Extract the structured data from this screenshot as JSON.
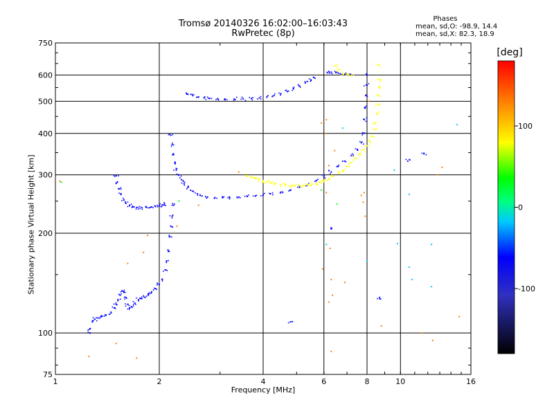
{
  "chart_data": {
    "type": "scatter",
    "title": "Tromsø 20140326 16:02:00–16:03:43",
    "subtitle": "RwPretec (8p)",
    "xlabel": "Frequency [MHz]",
    "ylabel": "Stationary phase Virtual Height [km]",
    "x_scale": "log",
    "y_scale": "log",
    "xlim": [
      1,
      16
    ],
    "ylim": [
      75,
      750
    ],
    "x_ticks": [
      1,
      2,
      4,
      6,
      8,
      10,
      16
    ],
    "x_tick_labels": [
      "1",
      "2",
      "4",
      "6",
      "8",
      "10",
      "16"
    ],
    "y_ticks": [
      75,
      100,
      200,
      300,
      400,
      500,
      600,
      750
    ],
    "y_tick_labels": [
      "75",
      "100",
      "200",
      "300",
      "400",
      "500",
      "600",
      "750"
    ],
    "grid": true,
    "phases": {
      "title": "Phases",
      "o_label": "mean, sd,O:",
      "o_values": "-98.9, 14.4",
      "x_label": "mean, sd,X:",
      "x_values": "82.3, 18.9"
    },
    "colorbar": {
      "unit": "[deg]",
      "range": [
        -180,
        180
      ],
      "tick_values": [
        100,
        0,
        -100
      ],
      "tick_labels": [
        "100",
        "0",
        "-100"
      ],
      "colors": [
        "#ff0000",
        "#ff8000",
        "#ffff00",
        "#00ff00",
        "#00ffff",
        "#0000ff",
        "#000000"
      ]
    },
    "series": [
      {
        "mode": "O",
        "color": "#0000ff",
        "points": [
          [
            1.26,
            100
          ],
          [
            1.26,
            103
          ],
          [
            1.28,
            108
          ],
          [
            1.3,
            110
          ],
          [
            1.33,
            111
          ],
          [
            1.36,
            112
          ],
          [
            1.4,
            113
          ],
          [
            1.45,
            115
          ],
          [
            1.48,
            119
          ],
          [
            1.5,
            122
          ],
          [
            1.52,
            126
          ],
          [
            1.54,
            130
          ],
          [
            1.56,
            134
          ],
          [
            1.58,
            133
          ],
          [
            1.6,
            128
          ],
          [
            1.62,
            122
          ],
          [
            1.64,
            119
          ],
          [
            1.66,
            120
          ],
          [
            1.7,
            123
          ],
          [
            1.74,
            126
          ],
          [
            1.78,
            127
          ],
          [
            1.82,
            128
          ],
          [
            1.86,
            130
          ],
          [
            1.9,
            133
          ],
          [
            1.95,
            136
          ],
          [
            2.0,
            140
          ],
          [
            2.04,
            145
          ],
          [
            2.08,
            155
          ],
          [
            2.1,
            165
          ],
          [
            2.12,
            178
          ],
          [
            2.14,
            195
          ],
          [
            2.16,
            210
          ],
          [
            2.18,
            225
          ],
          [
            2.2,
            243
          ],
          [
            1.5,
            298
          ],
          [
            1.51,
            285
          ],
          [
            1.53,
            272
          ],
          [
            1.55,
            262
          ],
          [
            1.58,
            252
          ],
          [
            1.6,
            246
          ],
          [
            1.64,
            242
          ],
          [
            1.68,
            240
          ],
          [
            1.72,
            239
          ],
          [
            1.78,
            239
          ],
          [
            1.84,
            239
          ],
          [
            1.9,
            240
          ],
          [
            1.95,
            241
          ],
          [
            2.0,
            242
          ],
          [
            2.04,
            243
          ],
          [
            2.07,
            245
          ],
          [
            2.16,
            395
          ],
          [
            2.18,
            370
          ],
          [
            2.2,
            345
          ],
          [
            2.22,
            325
          ],
          [
            2.24,
            310
          ],
          [
            2.28,
            300
          ],
          [
            2.32,
            290
          ],
          [
            2.36,
            282
          ],
          [
            2.42,
            275
          ],
          [
            2.5,
            268
          ],
          [
            2.58,
            263
          ],
          [
            2.66,
            259
          ],
          [
            2.76,
            257
          ],
          [
            2.9,
            256
          ],
          [
            3.05,
            256
          ],
          [
            3.2,
            256
          ],
          [
            3.4,
            257
          ],
          [
            3.6,
            258
          ],
          [
            3.8,
            259
          ],
          [
            4.0,
            261
          ],
          [
            4.2,
            263
          ],
          [
            4.5,
            266
          ],
          [
            4.8,
            270
          ],
          [
            5.1,
            275
          ],
          [
            5.4,
            281
          ],
          [
            5.7,
            288
          ],
          [
            6.0,
            296
          ],
          [
            6.3,
            306
          ],
          [
            6.6,
            318
          ],
          [
            6.9,
            330
          ],
          [
            7.2,
            343
          ],
          [
            7.5,
            358
          ],
          [
            7.7,
            375
          ],
          [
            7.8,
            400
          ],
          [
            7.86,
            440
          ],
          [
            7.9,
            480
          ],
          [
            7.93,
            520
          ],
          [
            7.96,
            560
          ],
          [
            8.0,
            600
          ],
          [
            2.42,
            525
          ],
          [
            2.5,
            520
          ],
          [
            2.6,
            515
          ],
          [
            2.7,
            512
          ],
          [
            2.8,
            510
          ],
          [
            2.95,
            509
          ],
          [
            3.1,
            508
          ],
          [
            3.3,
            508
          ],
          [
            3.5,
            509
          ],
          [
            3.7,
            510
          ],
          [
            3.9,
            512
          ],
          [
            4.1,
            515
          ],
          [
            4.3,
            520
          ],
          [
            4.5,
            527
          ],
          [
            4.7,
            535
          ],
          [
            4.9,
            545
          ],
          [
            5.1,
            556
          ],
          [
            5.3,
            568
          ],
          [
            5.5,
            580
          ],
          [
            5.6,
            590
          ],
          [
            6.2,
            615
          ],
          [
            6.3,
            612
          ],
          [
            6.5,
            610
          ],
          [
            6.7,
            605
          ],
          [
            6.9,
            603
          ],
          [
            7.1,
            600
          ],
          [
            4.8,
            108
          ],
          [
            6.3,
            206
          ],
          [
            8.7,
            128
          ],
          [
            10.5,
            330
          ],
          [
            11.7,
            347
          ]
        ]
      },
      {
        "mode": "X",
        "color": "#ffff00",
        "points": [
          [
            3.6,
            298
          ],
          [
            3.7,
            295
          ],
          [
            3.8,
            292
          ],
          [
            3.9,
            290
          ],
          [
            4.0,
            288
          ],
          [
            4.1,
            286
          ],
          [
            4.2,
            284
          ],
          [
            4.35,
            282
          ],
          [
            4.5,
            280
          ],
          [
            4.65,
            279
          ],
          [
            4.8,
            278
          ],
          [
            4.95,
            278
          ],
          [
            5.1,
            278
          ],
          [
            5.25,
            279
          ],
          [
            5.4,
            280
          ],
          [
            5.55,
            281
          ],
          [
            5.7,
            283
          ],
          [
            5.85,
            285
          ],
          [
            6.0,
            288
          ],
          [
            6.2,
            292
          ],
          [
            6.4,
            297
          ],
          [
            6.6,
            303
          ],
          [
            6.8,
            310
          ],
          [
            7.0,
            318
          ],
          [
            7.2,
            327
          ],
          [
            7.4,
            337
          ],
          [
            7.6,
            347
          ],
          [
            7.8,
            357
          ],
          [
            8.0,
            367
          ],
          [
            8.15,
            378
          ],
          [
            8.3,
            392
          ],
          [
            8.4,
            410
          ],
          [
            8.48,
            430
          ],
          [
            8.54,
            460
          ],
          [
            8.58,
            490
          ],
          [
            8.62,
            520
          ],
          [
            8.66,
            550
          ],
          [
            8.7,
            580
          ],
          [
            6.45,
            640
          ],
          [
            6.6,
            620
          ],
          [
            6.8,
            605
          ],
          [
            7.0,
            600
          ],
          [
            7.2,
            598
          ],
          [
            8.7,
            640
          ]
        ]
      },
      {
        "mode": "noise",
        "color": "#ff8000",
        "points": [
          [
            1.03,
            287
          ],
          [
            1.25,
            85
          ],
          [
            1.5,
            93
          ],
          [
            1.72,
            84
          ],
          [
            1.62,
            162
          ],
          [
            1.8,
            175
          ],
          [
            1.85,
            197
          ],
          [
            2.25,
            210
          ],
          [
            2.6,
            243
          ],
          [
            3.4,
            306
          ],
          [
            5.9,
            430
          ],
          [
            6.05,
            400
          ],
          [
            6.2,
            320
          ],
          [
            6.1,
            265
          ],
          [
            6.25,
            180
          ],
          [
            6.3,
            145
          ],
          [
            6.35,
            130
          ],
          [
            6.3,
            88
          ],
          [
            6.2,
            124
          ],
          [
            6.9,
            142
          ],
          [
            7.7,
            260
          ],
          [
            7.8,
            248
          ],
          [
            7.9,
            225
          ],
          [
            8.1,
            500
          ],
          [
            8.8,
            105
          ],
          [
            11.5,
            100
          ],
          [
            12.4,
            95
          ],
          [
            12.8,
            300
          ],
          [
            13.2,
            316
          ],
          [
            14.8,
            112
          ],
          [
            5.95,
            156
          ],
          [
            6.45,
            355
          ],
          [
            7.85,
            265
          ],
          [
            6.1,
            440
          ]
        ]
      },
      {
        "mode": "noise-cyan",
        "color": "#00c8ff",
        "points": [
          [
            9.6,
            310
          ],
          [
            9.8,
            186
          ],
          [
            10.6,
            262
          ],
          [
            10.6,
            158
          ],
          [
            10.8,
            145
          ],
          [
            12.3,
            185
          ],
          [
            12.3,
            138
          ],
          [
            14.6,
            425
          ],
          [
            6.8,
            415
          ],
          [
            6.1,
            185
          ],
          [
            8.0,
            165
          ]
        ]
      },
      {
        "mode": "noise-green",
        "color": "#00ff00",
        "points": [
          [
            1.04,
            285
          ],
          [
            2.28,
            250
          ],
          [
            6.55,
            245
          ],
          [
            5.9,
            270
          ]
        ]
      }
    ]
  }
}
